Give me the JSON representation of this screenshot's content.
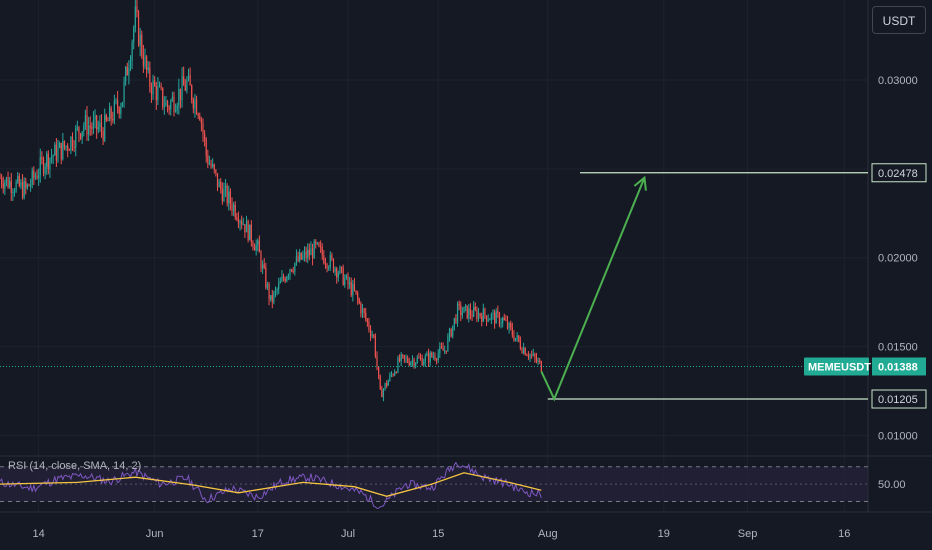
{
  "currency_button": "USDT",
  "colors": {
    "background": "#151924",
    "grid": "#1e222d",
    "up": "#26a69a",
    "down": "#ef5350",
    "last_price": "#22ab94",
    "level_line": "#c8e6c9",
    "arrow": "#4caf50",
    "rsi_line": "#7e57c2",
    "rsi_sma": "#f5c542",
    "rsi_band": "#2a2540"
  },
  "chart_data": [
    {
      "type": "candlestick",
      "symbol": "MEMEUSDT",
      "x_ticks": [
        "14",
        "Jun",
        "17",
        "Jul",
        "15",
        "Aug",
        "19",
        "Sep",
        "16"
      ],
      "y_ticks": [
        "0.03000",
        "0.02000",
        "0.01500",
        "0.01000"
      ],
      "y_tick_values": [
        0.03,
        0.02,
        0.015,
        0.01
      ],
      "ylim": [
        0.0089,
        0.0345
      ],
      "x_range": [
        "2024-05-08",
        "2024-09-20"
      ],
      "last_price": {
        "label": "MEMEUSDT",
        "value": "0.01388"
      },
      "levels": [
        {
          "value": "0.02478",
          "from": "2024-08-06",
          "to": "2024-09-22"
        },
        {
          "value": "0.01205",
          "from": "2024-08-01",
          "to": "2024-09-22"
        }
      ],
      "projection": {
        "path": [
          {
            "date": "2024-07-31",
            "price": 0.0136
          },
          {
            "date": "2024-08-02",
            "price": 0.01205
          },
          {
            "date": "2024-08-16",
            "price": 0.0245
          }
        ]
      },
      "closes": [
        {
          "date": "2024-05-08",
          "price": 0.0245
        },
        {
          "date": "2024-05-12",
          "price": 0.0238
        },
        {
          "date": "2024-05-15",
          "price": 0.0255
        },
        {
          "date": "2024-05-18",
          "price": 0.0262
        },
        {
          "date": "2024-05-21",
          "price": 0.0275
        },
        {
          "date": "2024-05-24",
          "price": 0.0272
        },
        {
          "date": "2024-05-27",
          "price": 0.029
        },
        {
          "date": "2024-05-29",
          "price": 0.0335
        },
        {
          "date": "2024-05-31",
          "price": 0.03
        },
        {
          "date": "2024-06-03",
          "price": 0.0285
        },
        {
          "date": "2024-06-06",
          "price": 0.0298
        },
        {
          "date": "2024-06-08",
          "price": 0.0283
        },
        {
          "date": "2024-06-09",
          "price": 0.0258
        },
        {
          "date": "2024-06-11",
          "price": 0.024
        },
        {
          "date": "2024-06-14",
          "price": 0.0225
        },
        {
          "date": "2024-06-17",
          "price": 0.0205
        },
        {
          "date": "2024-06-19",
          "price": 0.0175
        },
        {
          "date": "2024-06-22",
          "price": 0.0195
        },
        {
          "date": "2024-06-26",
          "price": 0.0205
        },
        {
          "date": "2024-06-29",
          "price": 0.0195
        },
        {
          "date": "2024-07-02",
          "price": 0.018
        },
        {
          "date": "2024-07-05",
          "price": 0.0155
        },
        {
          "date": "2024-07-06",
          "price": 0.0123
        },
        {
          "date": "2024-07-09",
          "price": 0.0142
        },
        {
          "date": "2024-07-13",
          "price": 0.0143
        },
        {
          "date": "2024-07-16",
          "price": 0.0148
        },
        {
          "date": "2024-07-18",
          "price": 0.017
        },
        {
          "date": "2024-07-22",
          "price": 0.0168
        },
        {
          "date": "2024-07-25",
          "price": 0.0165
        },
        {
          "date": "2024-07-28",
          "price": 0.015
        },
        {
          "date": "2024-07-31",
          "price": 0.0139
        }
      ]
    },
    {
      "type": "line",
      "indicator_label": "RSI (14, close, SMA, 14, 2)",
      "y_ticks": [
        "50.00"
      ],
      "ylim": [
        18,
        80
      ],
      "bands": [
        30,
        70
      ],
      "mid": 50,
      "rsi": [
        {
          "date": "2024-05-08",
          "value": 52
        },
        {
          "date": "2024-05-13",
          "value": 45
        },
        {
          "date": "2024-05-17",
          "value": 56
        },
        {
          "date": "2024-05-21",
          "value": 60
        },
        {
          "date": "2024-05-25",
          "value": 53
        },
        {
          "date": "2024-05-29",
          "value": 64
        },
        {
          "date": "2024-06-02",
          "value": 50
        },
        {
          "date": "2024-06-06",
          "value": 57
        },
        {
          "date": "2024-06-09",
          "value": 32
        },
        {
          "date": "2024-06-13",
          "value": 45
        },
        {
          "date": "2024-06-17",
          "value": 35
        },
        {
          "date": "2024-06-21",
          "value": 54
        },
        {
          "date": "2024-06-25",
          "value": 58
        },
        {
          "date": "2024-06-29",
          "value": 50
        },
        {
          "date": "2024-07-03",
          "value": 40
        },
        {
          "date": "2024-07-06",
          "value": 24
        },
        {
          "date": "2024-07-10",
          "value": 50
        },
        {
          "date": "2024-07-14",
          "value": 46
        },
        {
          "date": "2024-07-18",
          "value": 76
        },
        {
          "date": "2024-07-22",
          "value": 58
        },
        {
          "date": "2024-07-26",
          "value": 50
        },
        {
          "date": "2024-07-28",
          "value": 42
        },
        {
          "date": "2024-07-31",
          "value": 38
        }
      ],
      "sma": [
        {
          "date": "2024-05-08",
          "value": 50
        },
        {
          "date": "2024-05-20",
          "value": 52
        },
        {
          "date": "2024-05-29",
          "value": 58
        },
        {
          "date": "2024-06-07",
          "value": 49
        },
        {
          "date": "2024-06-14",
          "value": 40
        },
        {
          "date": "2024-06-24",
          "value": 52
        },
        {
          "date": "2024-07-02",
          "value": 47
        },
        {
          "date": "2024-07-07",
          "value": 36
        },
        {
          "date": "2024-07-14",
          "value": 50
        },
        {
          "date": "2024-07-19",
          "value": 63
        },
        {
          "date": "2024-07-26",
          "value": 52
        },
        {
          "date": "2024-07-31",
          "value": 43
        }
      ]
    }
  ]
}
